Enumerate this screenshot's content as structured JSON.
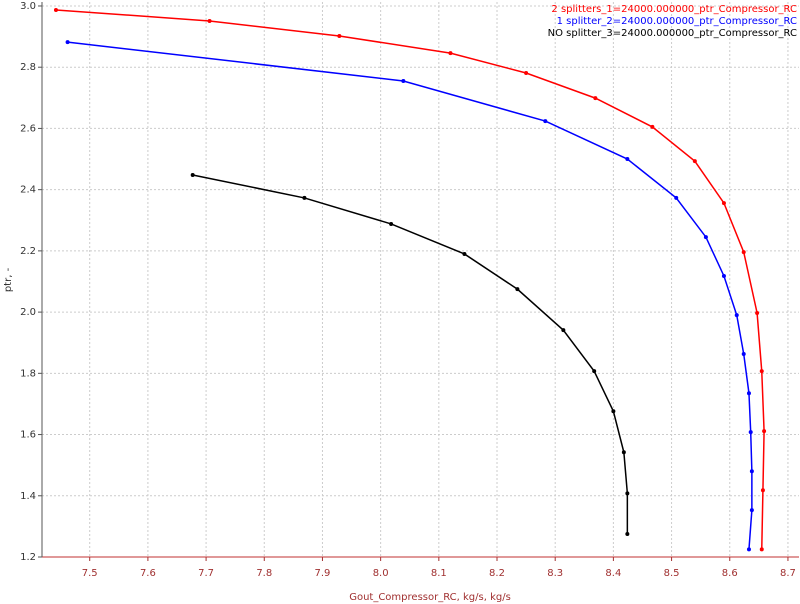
{
  "chart_data": {
    "type": "line",
    "x_label": "Gout_Compressor_RC, kg/s, kg/s",
    "y_label": "ptr, -",
    "xlim": [
      7.418,
      8.719
    ],
    "ylim": [
      1.2,
      3.013
    ],
    "xticks": [
      7.5,
      7.6,
      7.7,
      7.8,
      7.9,
      {
        "value": 8.0,
        "label": "8.0"
      },
      8.1,
      8.2,
      8.3,
      8.4,
      8.5,
      8.6,
      8.7
    ],
    "yticks": [
      1.2,
      1.4,
      1.6,
      1.8,
      {
        "value": 2.0,
        "label": "2.0"
      },
      2.2,
      2.4,
      2.6,
      2.8,
      {
        "value": 3.0,
        "label": "3.0"
      }
    ],
    "grid": true,
    "legend": "top-right",
    "series": [
      {
        "name": "2 splitters_1=24000.000000_ptr_Compressor_RC",
        "color": "#ff0000",
        "x": [
          7.442,
          7.706,
          7.929,
          8.12,
          8.25,
          8.369,
          8.467,
          8.54,
          8.59,
          8.624,
          8.647,
          8.655,
          8.659,
          8.657,
          8.655
        ],
        "values": [
          2.987,
          2.951,
          2.902,
          2.846,
          2.781,
          2.699,
          2.605,
          2.493,
          2.356,
          2.196,
          1.997,
          1.807,
          1.611,
          1.418,
          1.225
        ]
      },
      {
        "name": "1 splitter_2=24000.000000_ptr_Compressor_RC",
        "color": "#0000ff",
        "x": [
          7.462,
          8.039,
          8.283,
          8.424,
          8.508,
          8.559,
          8.59,
          8.612,
          8.624,
          8.633,
          8.636,
          8.638,
          8.638,
          8.633
        ],
        "values": [
          2.882,
          2.755,
          2.624,
          2.5,
          2.373,
          2.245,
          2.118,
          1.99,
          1.863,
          1.735,
          1.608,
          1.48,
          1.353,
          1.225
        ]
      },
      {
        "name": "NO splitter_3=24000.000000_ptr_Compressor_RC",
        "color": "#000000",
        "x": [
          7.677,
          7.869,
          8.018,
          8.144,
          8.235,
          8.314,
          8.367,
          8.4,
          8.418,
          8.424,
          8.424
        ],
        "values": [
          2.448,
          2.373,
          2.288,
          2.19,
          2.075,
          1.941,
          1.807,
          1.676,
          1.542,
          1.408,
          1.275
        ]
      }
    ]
  }
}
